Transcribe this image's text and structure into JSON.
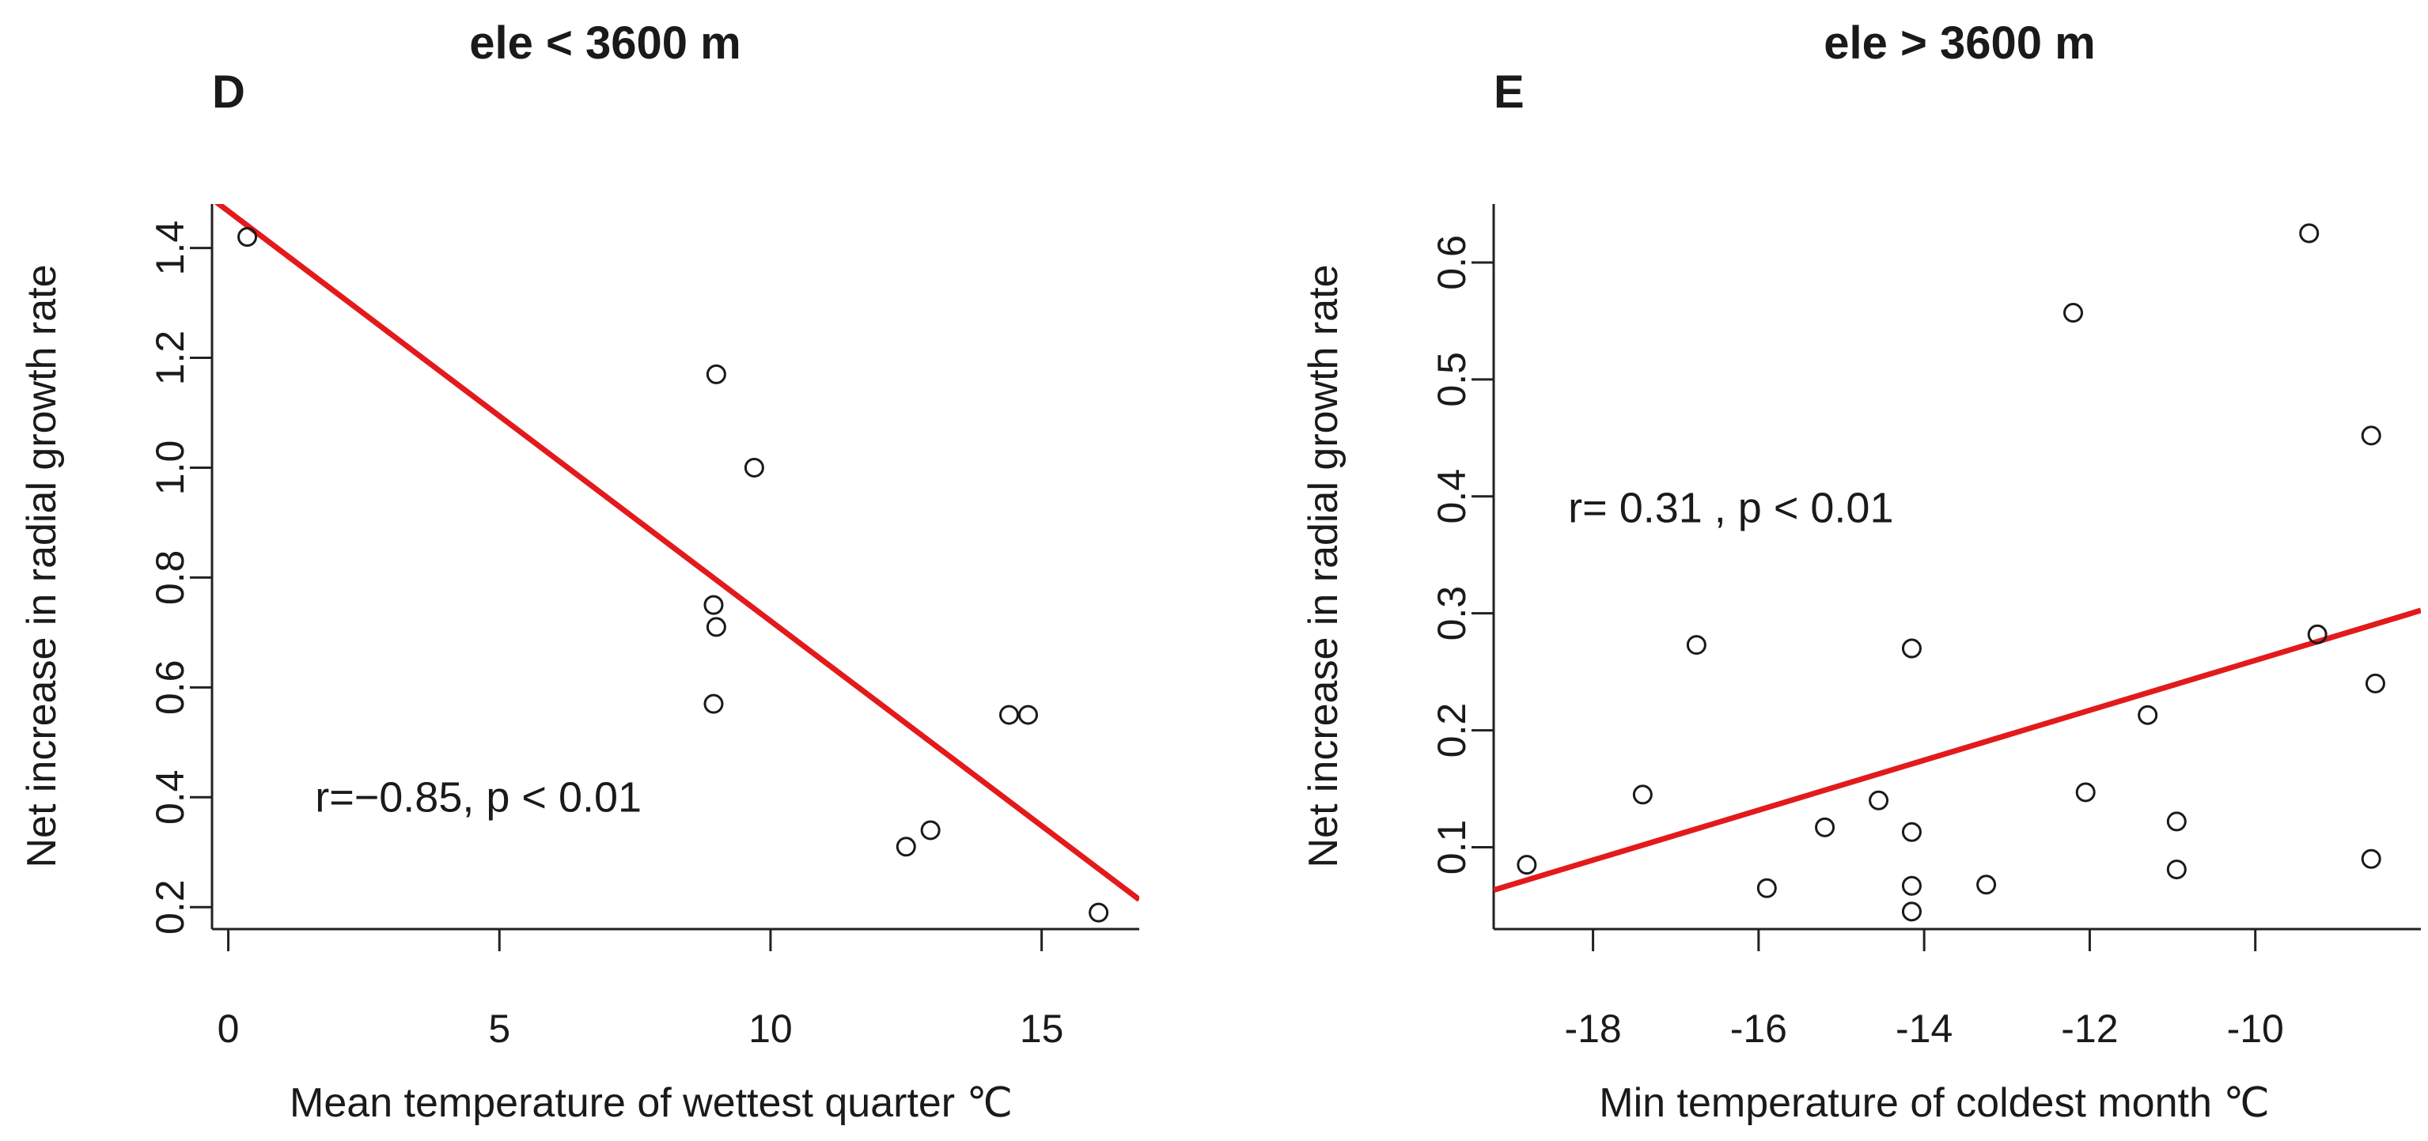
{
  "chart_data": [
    {
      "type": "scatter",
      "panel_label": "D",
      "title": "ele < 3600 m",
      "xlabel": "Mean temperature of wettest quarter ℃",
      "ylabel": "Net increase in radial growth rate",
      "xlim": [
        -0.3,
        16.8
      ],
      "ylim": [
        0.16,
        1.48
      ],
      "xticks": [
        0,
        5,
        10,
        15
      ],
      "yticks": [
        0.2,
        0.4,
        0.6,
        0.8,
        1.0,
        1.2,
        1.4
      ],
      "tick_labels_x": [
        "0",
        "5",
        "10",
        "15"
      ],
      "tick_labels_y": [
        "0.2",
        "0.4",
        "0.6",
        "0.8",
        "1.0",
        "1.2",
        "1.4"
      ],
      "annotation": "r=−0.85, p < 0.01",
      "annotation_at": [
        1.6,
        0.4
      ],
      "line_color": "#e31a1c",
      "fit_line": {
        "slope": -0.0746,
        "intercept": 1.467
      },
      "points": [
        {
          "x": 0.35,
          "y": 1.42
        },
        {
          "x": 9.0,
          "y": 1.17
        },
        {
          "x": 9.7,
          "y": 1.0
        },
        {
          "x": 8.95,
          "y": 0.75
        },
        {
          "x": 9.0,
          "y": 0.71
        },
        {
          "x": 8.95,
          "y": 0.57
        },
        {
          "x": 14.4,
          "y": 0.55
        },
        {
          "x": 14.75,
          "y": 0.55
        },
        {
          "x": 12.5,
          "y": 0.31
        },
        {
          "x": 12.95,
          "y": 0.34
        },
        {
          "x": 16.05,
          "y": 0.19
        }
      ]
    },
    {
      "type": "scatter",
      "panel_label": "E",
      "title": "ele > 3600 m",
      "xlabel": "Min temperature of coldest month ℃",
      "ylabel": "Net increase in radial growth rate",
      "xlim": [
        -19.2,
        -8.0
      ],
      "ylim": [
        0.03,
        0.65
      ],
      "xticks": [
        -18,
        -16,
        -14,
        -12,
        -10
      ],
      "yticks": [
        0.1,
        0.2,
        0.3,
        0.4,
        0.5,
        0.6
      ],
      "tick_labels_x": [
        "-18",
        "-16",
        "-14",
        "-12",
        "-10"
      ],
      "tick_labels_y": [
        "0.1",
        "0.2",
        "0.3",
        "0.4",
        "0.5",
        "0.6"
      ],
      "annotation": "r= 0.31 , p < 0.01",
      "annotation_at": [
        -18.3,
        0.39
      ],
      "line_color": "#e31a1c",
      "fit_line": {
        "slope": 0.02135,
        "intercept": 0.4733
      },
      "points": [
        {
          "x": -18.8,
          "y": 0.085
        },
        {
          "x": -17.4,
          "y": 0.145
        },
        {
          "x": -16.75,
          "y": 0.273
        },
        {
          "x": -15.9,
          "y": 0.065
        },
        {
          "x": -15.2,
          "y": 0.117
        },
        {
          "x": -14.55,
          "y": 0.14
        },
        {
          "x": -14.15,
          "y": 0.27
        },
        {
          "x": -14.15,
          "y": 0.113
        },
        {
          "x": -14.15,
          "y": 0.067
        },
        {
          "x": -14.15,
          "y": 0.045
        },
        {
          "x": -13.25,
          "y": 0.068
        },
        {
          "x": -12.2,
          "y": 0.557
        },
        {
          "x": -12.05,
          "y": 0.147
        },
        {
          "x": -11.3,
          "y": 0.213
        },
        {
          "x": -10.95,
          "y": 0.122
        },
        {
          "x": -10.95,
          "y": 0.081
        },
        {
          "x": -9.35,
          "y": 0.625
        },
        {
          "x": -9.25,
          "y": 0.282
        },
        {
          "x": -8.6,
          "y": 0.452
        },
        {
          "x": -8.55,
          "y": 0.24
        },
        {
          "x": -8.6,
          "y": 0.09
        }
      ]
    }
  ]
}
